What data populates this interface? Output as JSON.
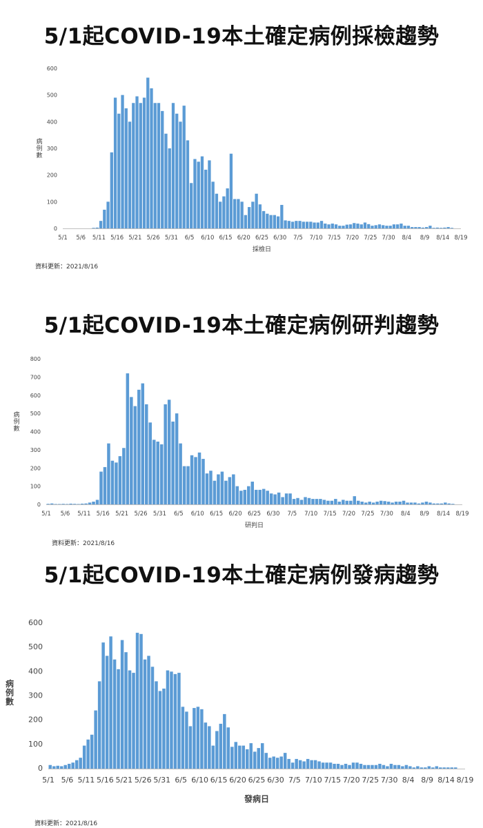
{
  "charts": [
    {
      "title": "5/1起COVID-19本土確定病例採檢趨勢",
      "note": "資料更新：2021/8/16"
    },
    {
      "title": "5/1起COVID-19本土確定病例研判趨勢",
      "note": "資料更新：2021/8/16"
    },
    {
      "title": "5/1起COVID-19本土確定病例發病趨勢",
      "note": "資料更新：2021/8/16"
    }
  ],
  "chart_data": [
    {
      "type": "bar",
      "title": "5/1起COVID-19本土確定病例採檢趨勢",
      "xlabel": "採檢日",
      "ylabel": "病例數",
      "ylim": [
        0,
        600
      ],
      "yticks": [
        0,
        100,
        200,
        300,
        400,
        500,
        600
      ],
      "xtick_labels": [
        "5/1",
        "5/6",
        "5/11",
        "5/16",
        "5/21",
        "5/26",
        "5/31",
        "6/5",
        "6/10",
        "6/15",
        "6/20",
        "6/25",
        "6/30",
        "7/5",
        "7/10",
        "7/15",
        "7/20",
        "7/25",
        "7/30",
        "8/4",
        "8/9",
        "8/14",
        "8/19"
      ],
      "bar_color": "#5B9BD5",
      "grid": false,
      "categories": [
        "5/1",
        "5/2",
        "5/3",
        "5/4",
        "5/5",
        "5/6",
        "5/7",
        "5/8",
        "5/9",
        "5/10",
        "5/11",
        "5/12",
        "5/13",
        "5/14",
        "5/15",
        "5/16",
        "5/17",
        "5/18",
        "5/19",
        "5/20",
        "5/21",
        "5/22",
        "5/23",
        "5/24",
        "5/25",
        "5/26",
        "5/27",
        "5/28",
        "5/29",
        "5/30",
        "5/31",
        "6/1",
        "6/2",
        "6/3",
        "6/4",
        "6/5",
        "6/6",
        "6/7",
        "6/8",
        "6/9",
        "6/10",
        "6/11",
        "6/12",
        "6/13",
        "6/14",
        "6/15",
        "6/16",
        "6/17",
        "6/18",
        "6/19",
        "6/20",
        "6/21",
        "6/22",
        "6/23",
        "6/24",
        "6/25",
        "6/26",
        "6/27",
        "6/28",
        "6/29",
        "6/30",
        "7/1",
        "7/2",
        "7/3",
        "7/4",
        "7/5",
        "7/6",
        "7/7",
        "7/8",
        "7/9",
        "7/10",
        "7/11",
        "7/12",
        "7/13",
        "7/14",
        "7/15",
        "7/16",
        "7/17",
        "7/18",
        "7/19",
        "7/20",
        "7/21",
        "7/22",
        "7/23",
        "7/24",
        "7/25",
        "7/26",
        "7/27",
        "7/28",
        "7/29",
        "7/30",
        "7/31",
        "8/1",
        "8/2",
        "8/3",
        "8/4",
        "8/5",
        "8/6",
        "8/7",
        "8/8",
        "8/9",
        "8/10",
        "8/11",
        "8/12",
        "8/13",
        "8/14",
        "8/15",
        "8/16"
      ],
      "values": [
        0,
        0,
        0,
        0,
        0,
        0,
        0,
        0,
        2,
        3,
        28,
        70,
        100,
        285,
        490,
        430,
        500,
        450,
        400,
        470,
        495,
        470,
        490,
        565,
        525,
        470,
        470,
        440,
        355,
        300,
        470,
        430,
        400,
        460,
        330,
        170,
        260,
        250,
        270,
        220,
        255,
        175,
        130,
        100,
        120,
        150,
        280,
        110,
        110,
        100,
        50,
        80,
        100,
        130,
        90,
        65,
        55,
        50,
        50,
        45,
        88,
        30,
        28,
        25,
        28,
        28,
        25,
        25,
        25,
        22,
        22,
        28,
        18,
        15,
        18,
        15,
        10,
        10,
        14,
        15,
        20,
        18,
        15,
        22,
        16,
        10,
        12,
        15,
        12,
        10,
        10,
        15,
        15,
        18,
        10,
        10,
        5,
        5,
        5,
        3,
        5,
        10,
        2,
        3,
        2,
        3,
        5,
        2
      ]
    },
    {
      "type": "bar",
      "title": "5/1起COVID-19本土確定病例研判趨勢",
      "xlabel": "研判日",
      "ylabel": "病例數",
      "ylim": [
        0,
        800
      ],
      "yticks": [
        0,
        100,
        200,
        300,
        400,
        500,
        600,
        700,
        800
      ],
      "xtick_labels": [
        "5/1",
        "5/6",
        "5/11",
        "5/16",
        "5/21",
        "5/26",
        "5/31",
        "6/5",
        "6/10",
        "6/15",
        "6/20",
        "6/25",
        "6/30",
        "7/5",
        "7/10",
        "7/15",
        "7/20",
        "7/25",
        "7/30",
        "8/4",
        "8/9",
        "8/14",
        "8/19"
      ],
      "bar_color": "#5B9BD5",
      "grid": false,
      "categories": [
        "5/1",
        "5/2",
        "5/3",
        "5/4",
        "5/5",
        "5/6",
        "5/7",
        "5/8",
        "5/9",
        "5/10",
        "5/11",
        "5/12",
        "5/13",
        "5/14",
        "5/15",
        "5/16",
        "5/17",
        "5/18",
        "5/19",
        "5/20",
        "5/21",
        "5/22",
        "5/23",
        "5/24",
        "5/25",
        "5/26",
        "5/27",
        "5/28",
        "5/29",
        "5/30",
        "5/31",
        "6/1",
        "6/2",
        "6/3",
        "6/4",
        "6/5",
        "6/6",
        "6/7",
        "6/8",
        "6/9",
        "6/10",
        "6/11",
        "6/12",
        "6/13",
        "6/14",
        "6/15",
        "6/16",
        "6/17",
        "6/18",
        "6/19",
        "6/20",
        "6/21",
        "6/22",
        "6/23",
        "6/24",
        "6/25",
        "6/26",
        "6/27",
        "6/28",
        "6/29",
        "6/30",
        "7/1",
        "7/2",
        "7/3",
        "7/4",
        "7/5",
        "7/6",
        "7/7",
        "7/8",
        "7/9",
        "7/10",
        "7/11",
        "7/12",
        "7/13",
        "7/14",
        "7/15",
        "7/16",
        "7/17",
        "7/18",
        "7/19",
        "7/20",
        "7/21",
        "7/22",
        "7/23",
        "7/24",
        "7/25",
        "7/26",
        "7/27",
        "7/28",
        "7/29",
        "7/30",
        "7/31",
        "8/1",
        "8/2",
        "8/3",
        "8/4",
        "8/5",
        "8/6",
        "8/7",
        "8/8",
        "8/9",
        "8/10",
        "8/11",
        "8/12",
        "8/13",
        "8/14",
        "8/15",
        "8/16"
      ],
      "values": [
        3,
        5,
        2,
        2,
        3,
        2,
        4,
        3,
        2,
        4,
        5,
        10,
        15,
        25,
        180,
        205,
        335,
        240,
        230,
        265,
        310,
        720,
        590,
        540,
        630,
        665,
        550,
        450,
        355,
        345,
        330,
        550,
        575,
        455,
        500,
        335,
        210,
        210,
        270,
        260,
        285,
        250,
        170,
        185,
        130,
        165,
        180,
        130,
        150,
        165,
        100,
        75,
        80,
        100,
        125,
        80,
        80,
        85,
        75,
        60,
        55,
        65,
        40,
        60,
        60,
        30,
        35,
        25,
        40,
        35,
        30,
        30,
        30,
        25,
        20,
        20,
        30,
        15,
        25,
        20,
        20,
        45,
        20,
        15,
        10,
        15,
        10,
        15,
        20,
        18,
        15,
        10,
        15,
        15,
        20,
        10,
        10,
        10,
        5,
        10,
        15,
        10,
        5,
        5,
        5,
        10,
        5,
        3
      ]
    },
    {
      "type": "bar",
      "title": "5/1起COVID-19本土確定病例發病趨勢",
      "xlabel": "發病日",
      "ylabel": "病例數",
      "ylim": [
        0,
        600
      ],
      "yticks": [
        0,
        100,
        200,
        300,
        400,
        500,
        600
      ],
      "xtick_labels": [
        "5/1",
        "5/6",
        "5/11",
        "5/16",
        "5/21",
        "5/26",
        "5/31",
        "6/5",
        "6/10",
        "6/15",
        "6/20",
        "6/25",
        "6/30",
        "7/5",
        "7/10",
        "7/15",
        "7/20",
        "7/25",
        "7/30",
        "8/4",
        "8/9",
        "8/14",
        "8/19"
      ],
      "bar_color": "#5B9BD5",
      "grid": false,
      "categories": [
        "5/1",
        "5/2",
        "5/3",
        "5/4",
        "5/5",
        "5/6",
        "5/7",
        "5/8",
        "5/9",
        "5/10",
        "5/11",
        "5/12",
        "5/13",
        "5/14",
        "5/15",
        "5/16",
        "5/17",
        "5/18",
        "5/19",
        "5/20",
        "5/21",
        "5/22",
        "5/23",
        "5/24",
        "5/25",
        "5/26",
        "5/27",
        "5/28",
        "5/29",
        "5/30",
        "5/31",
        "6/1",
        "6/2",
        "6/3",
        "6/4",
        "6/5",
        "6/6",
        "6/7",
        "6/8",
        "6/9",
        "6/10",
        "6/11",
        "6/12",
        "6/13",
        "6/14",
        "6/15",
        "6/16",
        "6/17",
        "6/18",
        "6/19",
        "6/20",
        "6/21",
        "6/22",
        "6/23",
        "6/24",
        "6/25",
        "6/26",
        "6/27",
        "6/28",
        "6/29",
        "6/30",
        "7/1",
        "7/2",
        "7/3",
        "7/4",
        "7/5",
        "7/6",
        "7/7",
        "7/8",
        "7/9",
        "7/10",
        "7/11",
        "7/12",
        "7/13",
        "7/14",
        "7/15",
        "7/16",
        "7/17",
        "7/18",
        "7/19",
        "7/20",
        "7/21",
        "7/22",
        "7/23",
        "7/24",
        "7/25",
        "7/26",
        "7/27",
        "7/28",
        "7/29",
        "7/30",
        "7/31",
        "8/1",
        "8/2",
        "8/3",
        "8/4",
        "8/5",
        "8/6",
        "8/7",
        "8/8",
        "8/9",
        "8/10",
        "8/11",
        "8/12",
        "8/13",
        "8/14",
        "8/15",
        "8/16"
      ],
      "values": [
        15,
        10,
        12,
        10,
        15,
        20,
        25,
        35,
        45,
        95,
        120,
        140,
        240,
        360,
        520,
        465,
        545,
        450,
        410,
        530,
        480,
        405,
        395,
        560,
        555,
        450,
        465,
        420,
        360,
        320,
        330,
        405,
        400,
        390,
        395,
        255,
        235,
        175,
        250,
        255,
        245,
        190,
        175,
        95,
        155,
        185,
        225,
        170,
        90,
        110,
        95,
        95,
        80,
        105,
        70,
        85,
        105,
        65,
        45,
        50,
        45,
        50,
        65,
        40,
        25,
        40,
        35,
        30,
        40,
        35,
        35,
        30,
        25,
        25,
        25,
        20,
        20,
        15,
        20,
        15,
        25,
        25,
        20,
        15,
        15,
        15,
        15,
        20,
        15,
        10,
        20,
        15,
        15,
        10,
        15,
        10,
        5,
        10,
        5,
        5,
        10,
        5,
        10,
        5,
        5,
        5,
        5,
        5
      ]
    }
  ]
}
